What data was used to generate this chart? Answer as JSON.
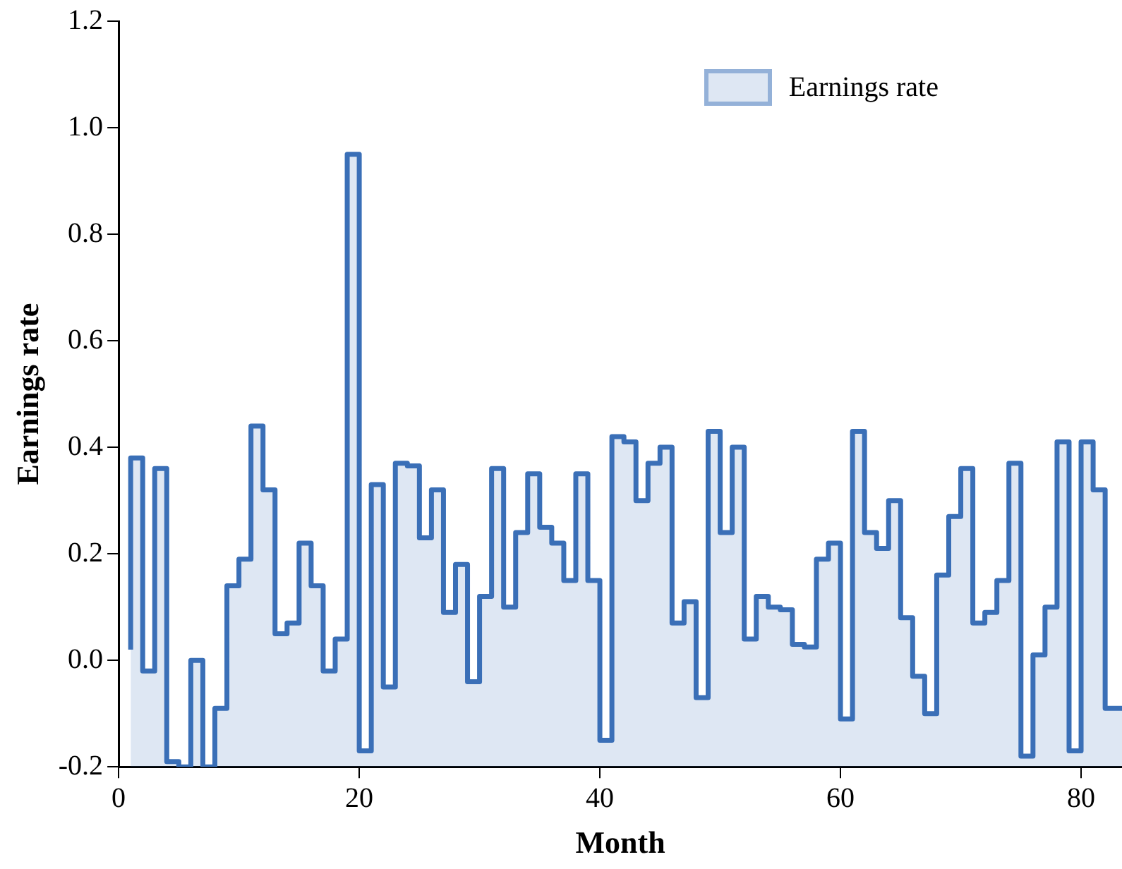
{
  "chart_data": {
    "type": "step",
    "xlabel": "Month",
    "ylabel": "Earnings rate",
    "x": [
      1,
      2,
      3,
      4,
      5,
      6,
      7,
      8,
      9,
      10,
      11,
      12,
      13,
      14,
      15,
      16,
      17,
      18,
      19,
      20,
      21,
      22,
      23,
      24,
      25,
      26,
      27,
      28,
      29,
      30,
      31,
      32,
      33,
      34,
      35,
      36,
      37,
      38,
      39,
      40,
      41,
      42,
      43,
      44,
      45,
      46,
      47,
      48,
      49,
      50,
      51,
      52,
      53,
      54,
      55,
      56,
      57,
      58,
      59,
      60,
      61,
      62,
      63,
      64,
      65,
      66,
      67,
      68,
      69,
      70,
      71,
      72,
      73,
      74,
      75,
      76,
      77,
      78,
      79,
      80,
      81,
      82,
      83
    ],
    "series": [
      {
        "name": "Earnings rate",
        "color": "#3a6fb7",
        "values": [
          0.02,
          0.38,
          -0.02,
          0.36,
          -0.19,
          -0.2,
          0.0,
          -0.2,
          -0.09,
          0.14,
          0.19,
          0.44,
          0.32,
          0.05,
          0.07,
          0.22,
          0.14,
          -0.02,
          0.04,
          0.95,
          -0.17,
          0.33,
          -0.05,
          0.37,
          0.365,
          0.23,
          0.32,
          0.09,
          0.18,
          -0.04,
          0.12,
          0.36,
          0.1,
          0.24,
          0.35,
          0.25,
          0.22,
          0.15,
          0.35,
          0.15,
          -0.15,
          0.42,
          0.41,
          0.3,
          0.37,
          0.4,
          0.07,
          0.11,
          -0.07,
          0.43,
          0.24,
          0.4,
          0.04,
          0.12,
          0.1,
          0.095,
          0.03,
          0.025,
          0.19,
          0.22,
          -0.11,
          0.43,
          0.24,
          0.21,
          0.3,
          0.08,
          -0.03,
          -0.1,
          0.16,
          0.27,
          0.36,
          0.07,
          0.09,
          0.15,
          0.37,
          -0.18,
          0.01,
          0.1,
          0.41,
          -0.17,
          0.41,
          0.32,
          -0.09
        ]
      }
    ],
    "xlim": [
      0,
      83.4
    ],
    "xticks": [
      0,
      20,
      40,
      60,
      80
    ],
    "ylim": [
      -0.2,
      1.2
    ],
    "yticks": [
      -0.2,
      {
        "value": 0,
        "label": "0.0"
      },
      0.2,
      0.4,
      0.6,
      0.8,
      {
        "value": 1,
        "label": "1.0"
      },
      1.2
    ],
    "grid": false,
    "legend": "top right",
    "marker": "none",
    "line_style": "solid"
  }
}
